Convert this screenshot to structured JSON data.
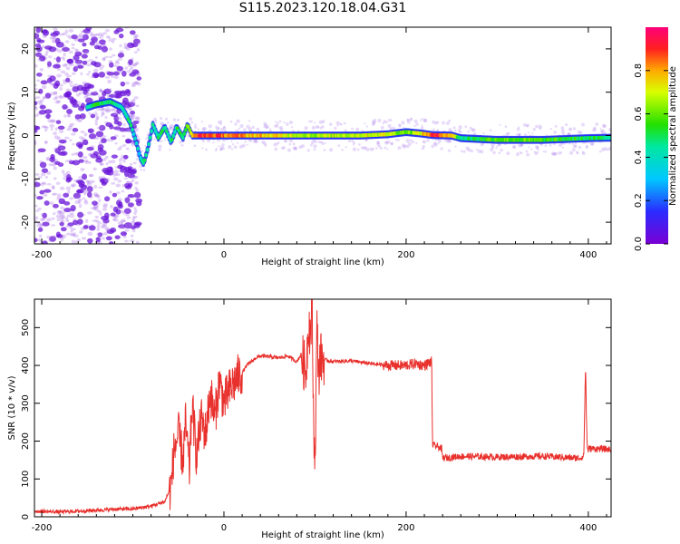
{
  "title": "S115.2023.120.18.04.G31",
  "colors": {
    "snr_line": "#e8302c",
    "spectrogram_scatter": "#8a2be2",
    "frame": "#000000"
  },
  "chart_data": [
    {
      "type": "heatmap",
      "title": "S115.2023.120.18.04.G31",
      "xlabel": "Height of straight line (km)",
      "ylabel": "Frequency (Hz)",
      "xlim": [
        -208,
        425
      ],
      "ylim": [
        -25,
        25
      ],
      "x_ticks": [
        -200,
        0,
        200,
        400
      ],
      "y_ticks": [
        -20,
        -10,
        0,
        10,
        20
      ],
      "x_tick_labels": [
        "-200",
        "0",
        "200",
        "400"
      ],
      "y_tick_labels": [
        "-20",
        "-10",
        "0",
        "10",
        "20"
      ],
      "grid": false,
      "colorbar": {
        "label": "Normalized spectral amplitude",
        "range": [
          0.0,
          1.0
        ],
        "ticks": [
          0.0,
          0.2,
          0.4,
          0.6,
          0.8
        ],
        "tick_labels": [
          "0.0",
          "0.2",
          "0.4",
          "0.6",
          "0.8"
        ],
        "colormap": "rainbow (purple → blue → cyan → green → yellow → red → magenta)"
      },
      "frequency_track": {
        "height_km": [
          -150,
          -140,
          -125,
          -112,
          -103,
          -97,
          -92,
          -88,
          -83,
          -78,
          -72,
          -65,
          -58,
          -52,
          -45,
          -40,
          -35,
          -30,
          0,
          50,
          100,
          150,
          180,
          200,
          215,
          230,
          250,
          260,
          300,
          350,
          400,
          425
        ],
        "frequency_hz": [
          6.5,
          7.2,
          7.8,
          6.5,
          3.0,
          -1.0,
          -5.0,
          -6.5,
          -2.5,
          2.5,
          -0.5,
          2.0,
          -1.5,
          2.0,
          -0.5,
          2.5,
          0.0,
          0.0,
          0.0,
          0.0,
          0.0,
          0.0,
          0.3,
          0.8,
          0.5,
          0.1,
          0.0,
          -0.6,
          -1.0,
          -1.0,
          -0.6,
          -0.5
        ],
        "amplitude": [
          0.45,
          0.5,
          0.5,
          0.45,
          0.45,
          0.4,
          0.35,
          0.45,
          0.4,
          0.5,
          0.45,
          0.5,
          0.45,
          0.5,
          0.5,
          0.55,
          0.7,
          0.9,
          0.85,
          0.75,
          0.65,
          0.7,
          0.7,
          0.6,
          0.7,
          0.9,
          0.8,
          0.45,
          0.6,
          0.55,
          0.5,
          0.45
        ]
      }
    },
    {
      "type": "line",
      "xlabel": "Height of straight line (km)",
      "ylabel": "SNR (10 * v/v)",
      "xlim": [
        -208,
        425
      ],
      "ylim": [
        0,
        575
      ],
      "x_ticks": [
        -200,
        0,
        200,
        400
      ],
      "y_ticks": [
        0,
        100,
        200,
        300,
        400,
        500
      ],
      "x_tick_labels": [
        "-200",
        "0",
        "200",
        "400"
      ],
      "y_tick_labels": [
        "0",
        "100",
        "200",
        "300",
        "400",
        "500"
      ],
      "grid": false,
      "series": [
        {
          "x": [
            -208,
            -180,
            -150,
            -120,
            -100,
            -80,
            -65,
            -58,
            -55,
            -50,
            -45,
            -42,
            -38,
            -35,
            -30,
            -25,
            -20,
            -15,
            -10,
            -5,
            0,
            5,
            10,
            15,
            20,
            25,
            30,
            35,
            40,
            50,
            60,
            70,
            80,
            85,
            90,
            93,
            95,
            97,
            98,
            100,
            102,
            104,
            106,
            110,
            120,
            140,
            160,
            180,
            200,
            210,
            220,
            228,
            229,
            235,
            239,
            240,
            260,
            300,
            350,
            390,
            395,
            397,
            398,
            399,
            401,
            410,
            425
          ],
          "values": [
            15,
            13,
            16,
            20,
            21,
            28,
            40,
            80,
            170,
            220,
            150,
            250,
            120,
            300,
            160,
            260,
            220,
            330,
            260,
            360,
            300,
            330,
            350,
            370,
            380,
            400,
            410,
            420,
            425,
            423,
            420,
            425,
            410,
            430,
            380,
            520,
            480,
            560,
            300,
            140,
            500,
            380,
            420,
            415,
            410,
            412,
            405,
            400,
            400,
            405,
            400,
            410,
            190,
            185,
            180,
            155,
            160,
            158,
            160,
            155,
            160,
            405,
            250,
            175,
            180,
            180,
            178
          ]
        }
      ]
    }
  ]
}
